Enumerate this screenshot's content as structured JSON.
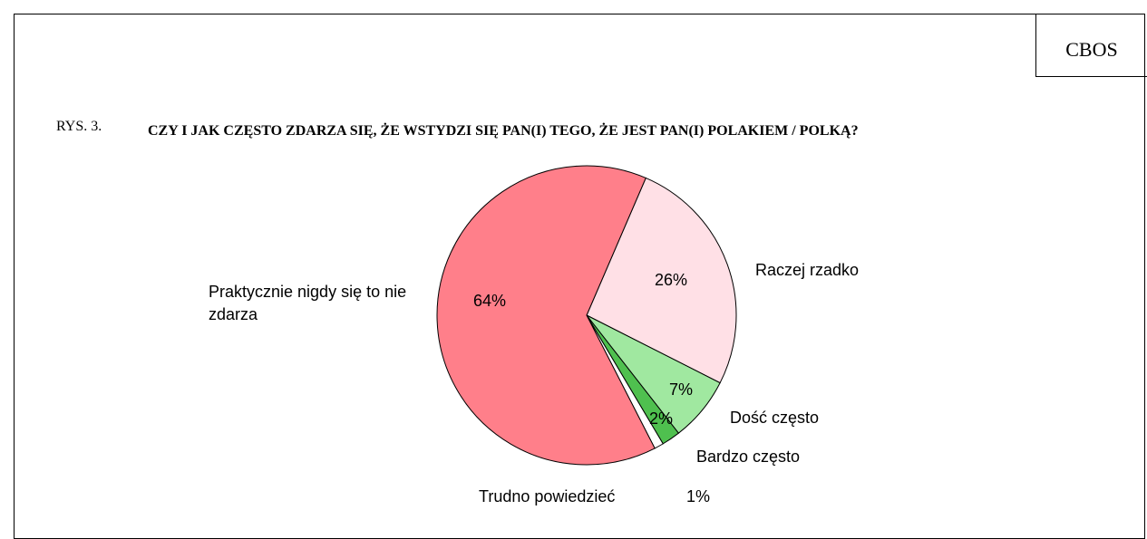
{
  "chart_data": {
    "type": "pie",
    "brand": "CBOS",
    "figure_number": "RYS. 3.",
    "title": "CZY I JAK CZĘSTO ZDARZA SIĘ, ŻE WSTYDZI SIĘ PAN(I) TEGO, ŻE JEST PAN(I) POLAKIEM / POLKĄ?",
    "categories": [
      "Raczej rzadko",
      "Dość często",
      "Bardzo często",
      "Trudno powiedzieć",
      "Praktycznie nigdy się to nie zdarza"
    ],
    "values": [
      26,
      7,
      2,
      1,
      64
    ],
    "value_labels": [
      "26%",
      "7%",
      "2%",
      "1%",
      "64%"
    ],
    "colors": [
      "#ffe0e6",
      "#a0e8a0",
      "#4fc04f",
      "#ffffff",
      "#ff7f8a"
    ]
  }
}
